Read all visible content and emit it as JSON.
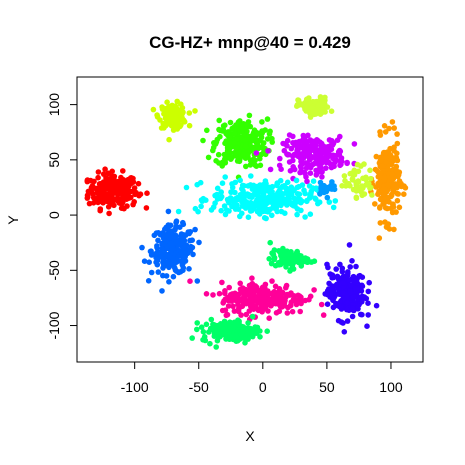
{
  "chart_data": {
    "type": "scatter",
    "title": "CG-HZ+ mnp@40 = 0.429",
    "xlabel": "X",
    "ylabel": "Y",
    "xlim": [
      -145,
      125
    ],
    "ylim": [
      -133,
      125
    ],
    "xticks": [
      -100,
      -50,
      0,
      50,
      100
    ],
    "yticks": [
      -100,
      -50,
      0,
      50,
      100
    ],
    "xtick_labels": [
      "-100",
      "-50",
      "0",
      "50",
      "100"
    ],
    "ytick_labels": [
      "-100",
      "-50",
      "0",
      "50",
      "100"
    ],
    "grid": false,
    "legend": "none",
    "clusters": [
      {
        "color": "#ff0000",
        "center": [
          -117,
          22
        ],
        "spread": [
          16,
          13
        ],
        "count": 230
      },
      {
        "color": "#0066ff",
        "center": [
          -70,
          -32
        ],
        "spread": [
          14,
          18
        ],
        "count": 230
      },
      {
        "color": "#ccff00",
        "center": [
          -70,
          90
        ],
        "spread": [
          9,
          9
        ],
        "count": 110
      },
      {
        "color": "#33ff00",
        "center": [
          -17,
          65
        ],
        "spread": [
          17,
          18
        ],
        "count": 250
      },
      {
        "color": "#ccff33",
        "center": [
          40,
          98
        ],
        "spread": [
          10,
          7
        ],
        "count": 90
      },
      {
        "color": "#cc00ff",
        "center": [
          40,
          55
        ],
        "spread": [
          20,
          13
        ],
        "count": 210
      },
      {
        "color": "#ff9900",
        "center": [
          97,
          32
        ],
        "spread": [
          8,
          30
        ],
        "count": 230
      },
      {
        "color": "#00ffff",
        "center": [
          0,
          15
        ],
        "spread": [
          33,
          13
        ],
        "count": 300
      },
      {
        "color": "#ff0099",
        "center": [
          0,
          -75
        ],
        "spread": [
          28,
          12
        ],
        "count": 250
      },
      {
        "color": "#00ff66",
        "center": [
          -25,
          -105
        ],
        "spread": [
          18,
          8
        ],
        "count": 170
      },
      {
        "color": "#00ff66",
        "center": [
          20,
          -40
        ],
        "spread": [
          12,
          7
        ],
        "count": 80
      },
      {
        "color": "#3300ff",
        "center": [
          65,
          -70
        ],
        "spread": [
          12,
          20
        ],
        "count": 230
      },
      {
        "color": "#ccff33",
        "center": [
          75,
          30
        ],
        "spread": [
          10,
          12
        ],
        "count": 50
      },
      {
        "color": "#0099ff",
        "center": [
          50,
          25
        ],
        "spread": [
          6,
          5
        ],
        "count": 25
      }
    ]
  }
}
